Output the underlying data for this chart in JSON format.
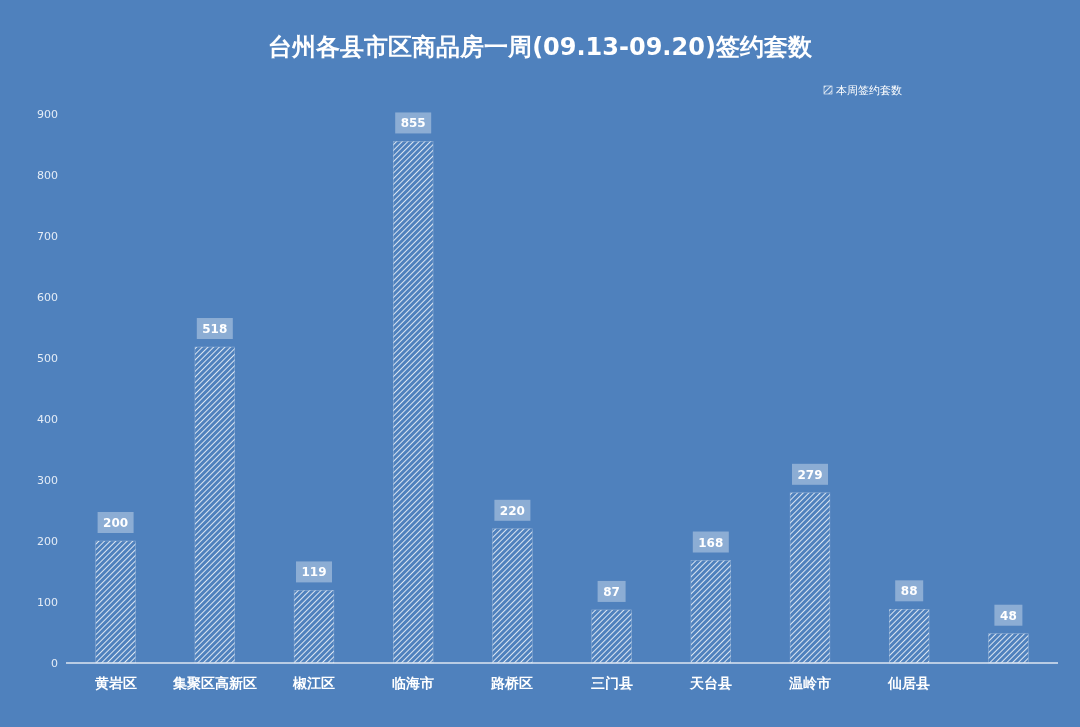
{
  "chart_data": {
    "type": "bar",
    "title": "台州各县市区商品房一周(09.13-09.20)签约套数",
    "categories": [
      "黄岩区",
      "集聚区高新区",
      "椒江区",
      "临海市",
      "路桥区",
      "三门县",
      "天台县",
      "温岭市",
      "仙居县",
      null
    ],
    "series": [
      {
        "name": "本周签约套数",
        "color": "#ffffff",
        "values": [
          200,
          518,
          119,
          855,
          220,
          87,
          168,
          279,
          88,
          48
        ]
      }
    ],
    "ylim": [
      0,
      900
    ],
    "yticks": [
      0,
      100,
      200,
      300,
      400,
      500,
      600,
      700,
      800,
      900
    ],
    "grid": false,
    "legend": "top right",
    "data_labels": true
  }
}
